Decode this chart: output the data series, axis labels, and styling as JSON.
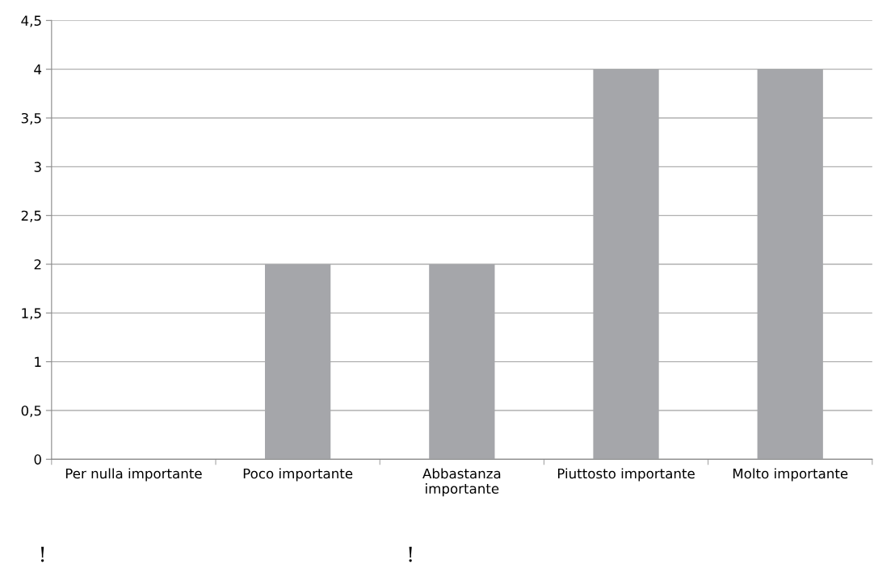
{
  "chart_data": {
    "type": "bar",
    "categories": [
      "Per nulla importante",
      "Poco importante",
      "Abbastanza\nimportante",
      "Piuttosto importante",
      "Molto importante"
    ],
    "values": [
      0,
      2,
      2,
      4,
      4
    ],
    "color": "#a5a6aa",
    "ylim": [
      0,
      4.5
    ],
    "yticks": [
      0,
      {
        "value": 0.5,
        "label": "0,5"
      },
      1,
      {
        "value": 1.5,
        "label": "1,5"
      },
      2,
      {
        "value": 2.5,
        "label": "2,5"
      },
      3,
      {
        "value": 3.5,
        "label": "3,5"
      },
      4,
      {
        "value": 4.5,
        "label": "4,5"
      }
    ],
    "grid": "y",
    "annotations": [
      "!",
      "!"
    ]
  }
}
